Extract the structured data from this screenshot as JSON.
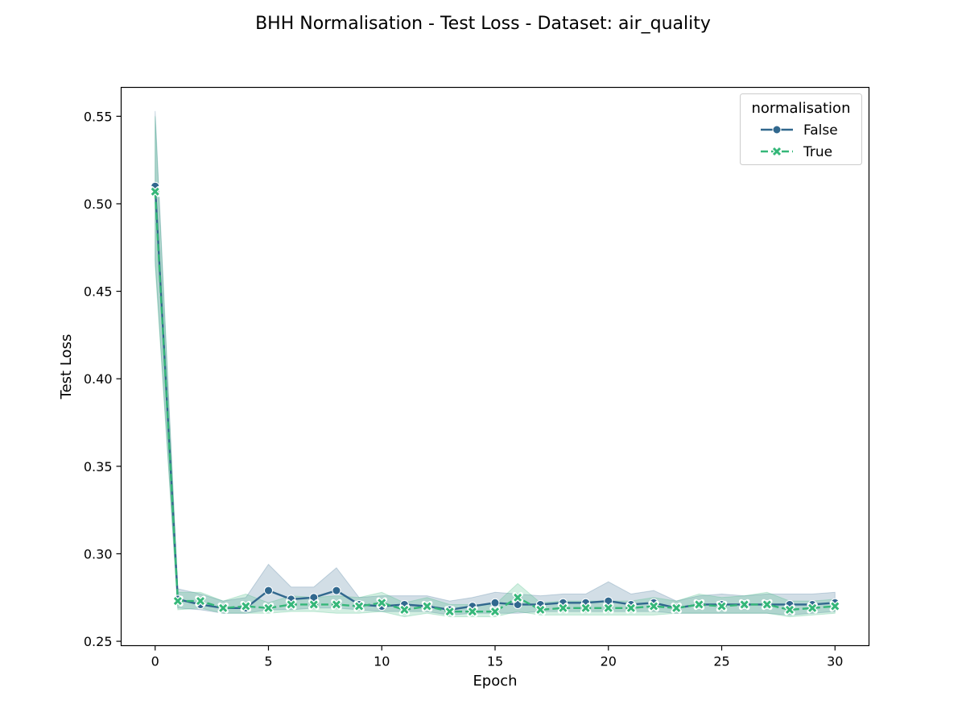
{
  "chart_data": {
    "type": "line",
    "title": "BHH Normalisation - Test Loss - Dataset: air_quality",
    "xlabel": "Epoch",
    "ylabel": "Test Loss",
    "xlim": [
      -1.5,
      31.5
    ],
    "ylim": [
      0.2475,
      0.5665
    ],
    "xticks": [
      0,
      5,
      10,
      15,
      20,
      25,
      30
    ],
    "yticks": [
      0.25,
      0.3,
      0.35,
      0.4,
      0.45,
      0.5,
      0.55
    ],
    "ytick_labels": [
      "0.25",
      "0.30",
      "0.35",
      "0.40",
      "0.45",
      "0.50",
      "0.55"
    ],
    "grid": false,
    "legend": {
      "title": "normalisation",
      "placement": "top-right"
    },
    "x": [
      0,
      1,
      2,
      3,
      4,
      5,
      6,
      7,
      8,
      9,
      10,
      11,
      12,
      13,
      14,
      15,
      16,
      17,
      18,
      19,
      20,
      21,
      22,
      23,
      24,
      25,
      26,
      27,
      28,
      29,
      30
    ],
    "series": [
      {
        "name": "False",
        "color": "#31688e",
        "marker": "circle",
        "linestyle": "solid",
        "values": [
          0.51,
          0.274,
          0.271,
          0.269,
          0.269,
          0.279,
          0.274,
          0.275,
          0.279,
          0.271,
          0.27,
          0.271,
          0.27,
          0.268,
          0.27,
          0.272,
          0.271,
          0.271,
          0.272,
          0.272,
          0.273,
          0.271,
          0.272,
          0.269,
          0.271,
          0.271,
          0.271,
          0.271,
          0.271,
          0.271,
          0.272
        ],
        "ci_lower": [
          0.468,
          0.269,
          0.268,
          0.266,
          0.266,
          0.268,
          0.268,
          0.269,
          0.269,
          0.268,
          0.267,
          0.267,
          0.267,
          0.265,
          0.266,
          0.266,
          0.266,
          0.267,
          0.267,
          0.267,
          0.267,
          0.267,
          0.267,
          0.266,
          0.266,
          0.266,
          0.266,
          0.266,
          0.265,
          0.266,
          0.267
        ],
        "ci_upper": [
          0.553,
          0.28,
          0.277,
          0.273,
          0.275,
          0.294,
          0.281,
          0.281,
          0.292,
          0.275,
          0.276,
          0.276,
          0.276,
          0.273,
          0.275,
          0.278,
          0.277,
          0.276,
          0.277,
          0.277,
          0.284,
          0.277,
          0.279,
          0.273,
          0.276,
          0.277,
          0.276,
          0.277,
          0.277,
          0.277,
          0.278
        ]
      },
      {
        "name": "True",
        "color": "#35b779",
        "marker": "x",
        "linestyle": "dashed",
        "values": [
          0.507,
          0.273,
          0.273,
          0.269,
          0.27,
          0.269,
          0.271,
          0.271,
          0.271,
          0.27,
          0.272,
          0.268,
          0.27,
          0.267,
          0.267,
          0.267,
          0.275,
          0.268,
          0.269,
          0.269,
          0.269,
          0.269,
          0.27,
          0.269,
          0.271,
          0.27,
          0.271,
          0.271,
          0.268,
          0.269,
          0.27
        ],
        "ci_lower": [
          0.465,
          0.268,
          0.269,
          0.266,
          0.266,
          0.266,
          0.267,
          0.267,
          0.266,
          0.266,
          0.267,
          0.264,
          0.266,
          0.264,
          0.264,
          0.264,
          0.267,
          0.265,
          0.265,
          0.265,
          0.265,
          0.265,
          0.265,
          0.266,
          0.266,
          0.266,
          0.266,
          0.266,
          0.264,
          0.265,
          0.266
        ],
        "ci_upper": [
          0.55,
          0.278,
          0.278,
          0.273,
          0.277,
          0.272,
          0.276,
          0.275,
          0.276,
          0.275,
          0.278,
          0.272,
          0.275,
          0.271,
          0.271,
          0.271,
          0.283,
          0.272,
          0.273,
          0.273,
          0.273,
          0.273,
          0.275,
          0.273,
          0.277,
          0.275,
          0.276,
          0.278,
          0.273,
          0.273,
          0.274
        ]
      }
    ]
  }
}
